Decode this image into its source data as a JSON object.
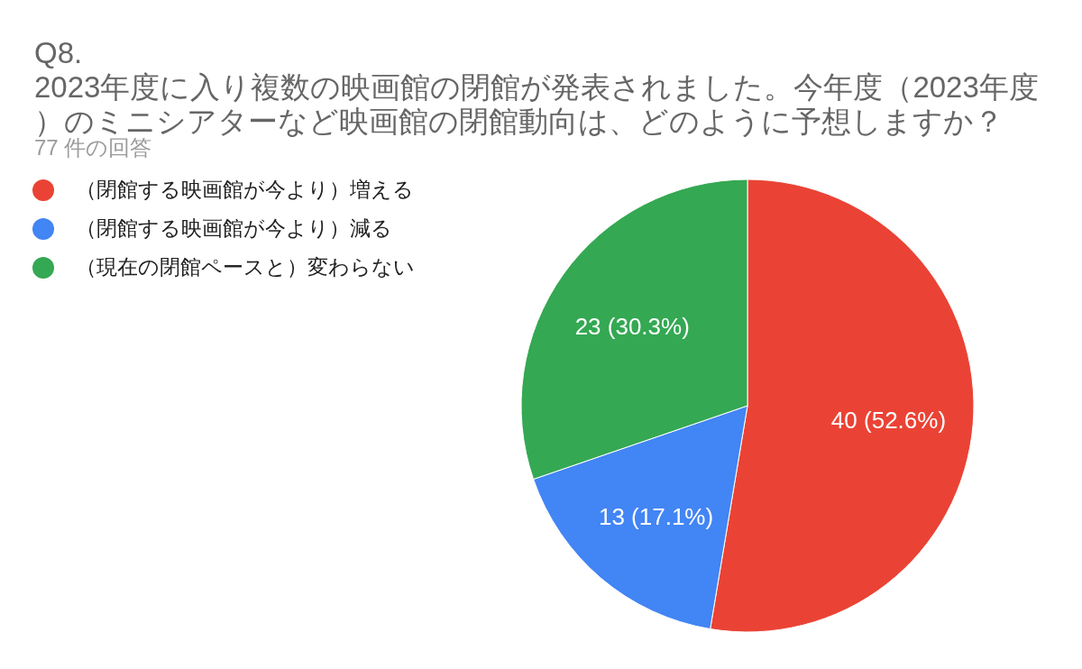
{
  "chart_data": {
    "type": "pie",
    "title": "Q8.\n2023年度に入り複数の映画館の閉館が発表されました。今年度（2023年度）のミニシアターなど映画館の閉館動向は、どのように予想しますか？",
    "subtitle": "77 件の回答",
    "categories": [
      "（閉館する映画館が今より）増える",
      "（閉館する映画館が今より）減る",
      "（現在の閉館ペースと）変わらない"
    ],
    "values": [
      40,
      13,
      23
    ],
    "colors": [
      "#ea4335",
      "#4285f4",
      "#34a853"
    ],
    "value_labels": [
      "40 (52.6%)",
      "13 (17.1%)",
      "23 (30.3%)"
    ],
    "legend": "top left"
  }
}
